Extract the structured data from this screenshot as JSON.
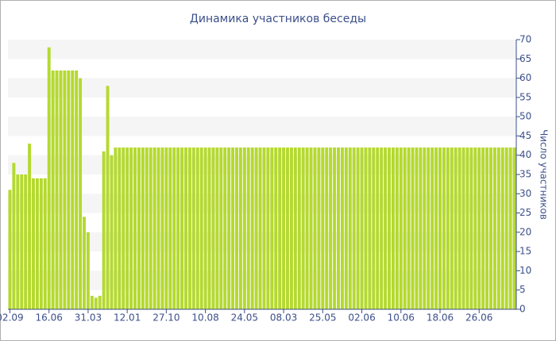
{
  "chart_data": {
    "type": "bar",
    "title": "Динамика участников беседы",
    "y_axis_label": "Число участников",
    "color": "#b5d930",
    "grid": true,
    "ylim": [
      0,
      70
    ],
    "yticks": [
      0,
      5,
      10,
      15,
      20,
      25,
      30,
      35,
      40,
      45,
      50,
      55,
      60,
      65,
      70
    ],
    "categories": [
      "02.09",
      null,
      null,
      null,
      null,
      null,
      null,
      null,
      null,
      null,
      "16.06",
      null,
      null,
      null,
      null,
      null,
      null,
      null,
      null,
      null,
      "31.03",
      null,
      null,
      null,
      null,
      null,
      null,
      null,
      null,
      null,
      "12.01",
      null,
      null,
      null,
      null,
      null,
      null,
      null,
      null,
      null,
      "27.10",
      null,
      null,
      null,
      null,
      null,
      null,
      null,
      null,
      null,
      "10.08",
      null,
      null,
      null,
      null,
      null,
      null,
      null,
      null,
      null,
      "24.05",
      null,
      null,
      null,
      null,
      null,
      null,
      null,
      null,
      null,
      "08.03",
      null,
      null,
      null,
      null,
      null,
      null,
      null,
      null,
      null,
      "25.05",
      null,
      null,
      null,
      null,
      null,
      null,
      null,
      null,
      null,
      "02.06",
      null,
      null,
      null,
      null,
      null,
      null,
      null,
      null,
      null,
      "10.06",
      null,
      null,
      null,
      null,
      null,
      null,
      null,
      null,
      null,
      "18.06",
      null,
      null,
      null,
      null,
      null,
      null,
      null,
      null,
      null,
      "26.06",
      null,
      null,
      null,
      null,
      null,
      null,
      null,
      null,
      null
    ],
    "values": [
      31,
      38,
      35,
      35,
      35,
      43,
      34,
      34,
      34,
      34,
      68,
      62,
      62,
      62,
      62,
      62,
      62,
      62,
      60,
      24,
      20,
      3.5,
      3,
      3.5,
      41,
      58,
      40,
      42,
      42,
      42,
      42,
      42,
      42,
      42,
      42,
      42,
      42,
      42,
      42,
      42,
      42,
      42,
      42,
      42,
      42,
      42,
      42,
      42,
      42,
      42,
      42,
      42,
      42,
      42,
      42,
      42,
      42,
      42,
      42,
      42,
      42,
      42,
      42,
      42,
      42,
      42,
      42,
      42,
      42,
      42,
      42,
      42,
      42,
      42,
      42,
      42,
      42,
      42,
      42,
      42,
      42,
      42,
      42,
      42,
      42,
      42,
      42,
      42,
      42,
      42,
      42,
      42,
      42,
      42,
      42,
      42,
      42,
      42,
      42,
      42,
      42,
      42,
      42,
      42,
      42,
      42,
      42,
      42,
      42,
      42,
      42,
      42,
      42,
      42,
      42,
      42,
      42,
      42,
      42,
      42,
      42,
      42,
      42,
      42,
      42,
      42,
      42,
      42,
      42,
      42
    ]
  }
}
